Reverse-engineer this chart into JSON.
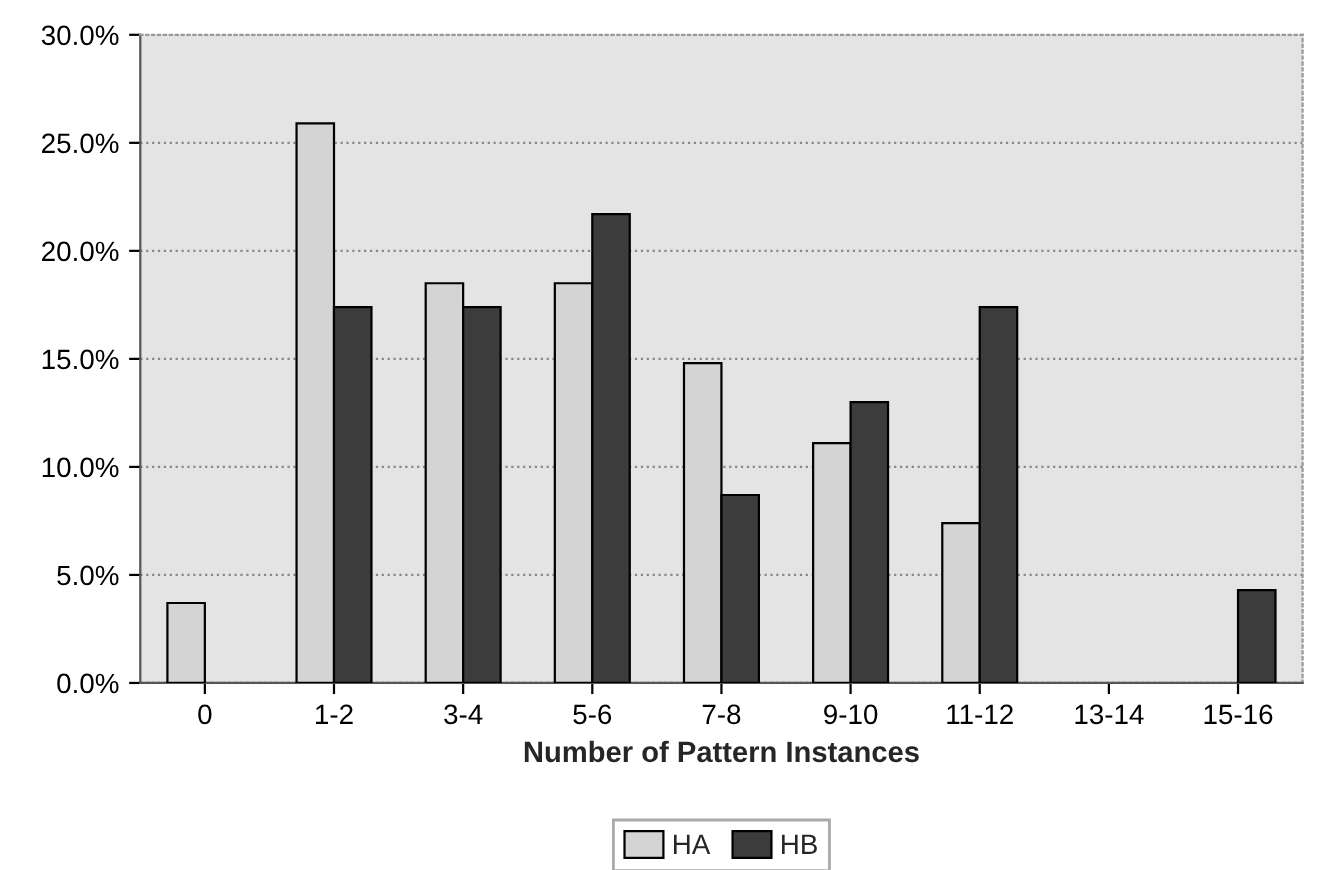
{
  "chart_data": {
    "type": "bar",
    "xlabel": "Number of Pattern Instances",
    "categories": [
      "0",
      "1-2",
      "3-4",
      "5-6",
      "7-8",
      "9-10",
      "11-12",
      "13-14",
      "15-16"
    ],
    "series": [
      {
        "name": "HA",
        "color": "#d4d4d4",
        "values": [
          3.7,
          25.9,
          18.5,
          18.5,
          14.8,
          11.1,
          7.4,
          null,
          null
        ]
      },
      {
        "name": "HB",
        "color": "#3c3c3c",
        "values": [
          null,
          17.4,
          17.4,
          21.7,
          8.7,
          13.0,
          17.4,
          null,
          4.3
        ]
      }
    ],
    "ylim": [
      0,
      30
    ],
    "yticks": [
      {
        "value": 0,
        "label": "0.0%"
      },
      {
        "value": 5,
        "label": "5.0%"
      },
      {
        "value": 10,
        "label": "10.0%"
      },
      {
        "value": 15,
        "label": "15.0%"
      },
      {
        "value": 20,
        "label": "20.0%"
      },
      {
        "value": 25,
        "label": "25.0%"
      },
      {
        "value": 30,
        "label": "30.0%"
      }
    ],
    "grid": "y",
    "legend": "bottom"
  }
}
